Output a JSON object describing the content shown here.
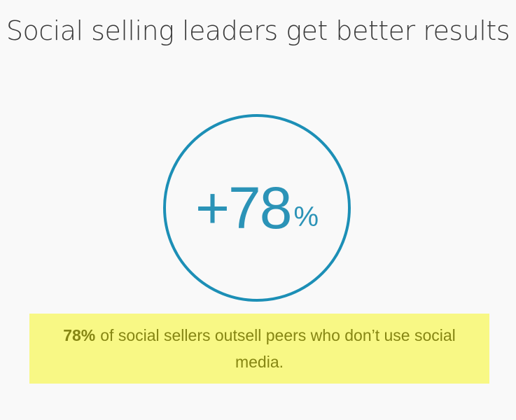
{
  "title": "Social selling leaders get better results",
  "stat": {
    "value": "+78",
    "unit": "%"
  },
  "caption": {
    "highlight": "78%",
    "text": "of social sellers outsell peers who don’t use social media."
  }
}
